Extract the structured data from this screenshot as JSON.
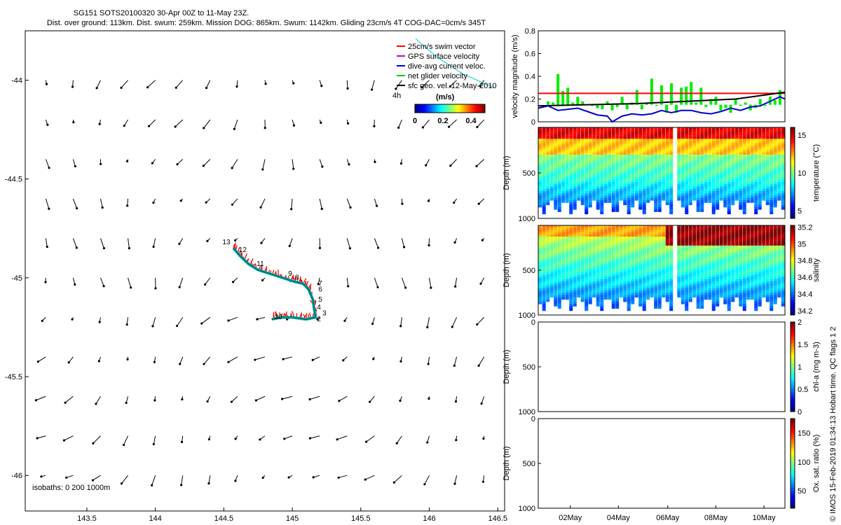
{
  "header": {
    "line1": "SG151 SOTS20100320 30-Apr 00Z to 11-May 23Z.",
    "line2": "Dist. over ground: 113km. Dist. swum: 259km. Mission DOG: 865km. Swum: 1142km. Gliding 23cm/s 4T COG-DAC=0cm/s 345T"
  },
  "footer": {
    "credit": "© IMOS 15-Feb-2019 01:34:13 Hobart time. QC flags 1 2"
  },
  "colors": {
    "swim": "#ff0000",
    "gps": "#cc00cc",
    "dac": "#0000cc",
    "net": "#00cc00",
    "cyan_track": "#00cccc",
    "black": "#000000"
  },
  "chart_data": [
    {
      "type": "scatter",
      "name": "map",
      "xlim": [
        143.05,
        146.55
      ],
      "ylim": [
        -46.18,
        -43.75
      ],
      "xticks": [
        143.5,
        144,
        144.5,
        145,
        145.5,
        146,
        146.5
      ],
      "yticks": [
        -44,
        -44.5,
        -45,
        -45.5,
        -46
      ],
      "xticklabels": [
        "143.5",
        "144",
        "144.5",
        "145",
        "145.5",
        "146",
        "146.5"
      ],
      "yticklabels": [
        "-44",
        "-44.5",
        "-45",
        "-45.5",
        "-46"
      ],
      "legend": {
        "items": [
          {
            "label": "25cm/s swim vector",
            "color": "#ff0000"
          },
          {
            "label": "GPS surface velocity",
            "color": "#cc00cc"
          },
          {
            "label": "dive-avg current veloc.",
            "color": "#0000cc"
          },
          {
            "label": "net glider velocity",
            "color": "#00cc00"
          },
          {
            "label": "sfc geo. vel. 12-May-2010",
            "color": "#000000"
          }
        ],
        "placement": "top-right",
        "extra_label": "4h",
        "colorbar_title": "(m/s)",
        "colorbar_ticks": [
          "0",
          "0.2",
          "0.4"
        ],
        "colorbar_range": [
          0,
          0.5
        ]
      },
      "isobaths_label": "isobaths: 0   200   1000m",
      "day_labels": [
        {
          "text": "13",
          "lon": 144.49,
          "lat": -44.83
        },
        {
          "text": "12",
          "lon": 144.61,
          "lat": -44.87
        },
        {
          "text": "11",
          "lon": 144.74,
          "lat": -44.94
        },
        {
          "text": "9",
          "lon": 144.97,
          "lat": -44.99
        },
        {
          "text": "8",
          "lon": 145.02,
          "lat": -45.01
        },
        {
          "text": "7",
          "lon": 145.19,
          "lat": -45.04
        },
        {
          "text": "6",
          "lon": 145.19,
          "lat": -45.07
        },
        {
          "text": "5",
          "lon": 145.19,
          "lat": -45.12
        },
        {
          "text": "4",
          "lon": 145.18,
          "lat": -45.16
        },
        {
          "text": "3",
          "lon": 145.22,
          "lat": -45.19
        },
        {
          "text": "2",
          "lon": 145.18,
          "lat": -45.22
        },
        {
          "text": "30",
          "lon": 144.87,
          "lat": -45.21
        }
      ],
      "track": [
        [
          144.57,
          -44.85
        ],
        [
          144.62,
          -44.89
        ],
        [
          144.68,
          -44.93
        ],
        [
          144.75,
          -44.96
        ],
        [
          144.84,
          -44.98
        ],
        [
          144.93,
          -45.0
        ],
        [
          145.02,
          -45.02
        ],
        [
          145.08,
          -45.03
        ],
        [
          145.12,
          -45.06
        ],
        [
          145.15,
          -45.11
        ],
        [
          145.16,
          -45.16
        ],
        [
          145.17,
          -45.2
        ],
        [
          145.1,
          -45.21
        ],
        [
          145.0,
          -45.2
        ],
        [
          144.92,
          -45.2
        ],
        [
          144.85,
          -45.21
        ]
      ],
      "cyan_track": [
        [
          145.9,
          -43.79
        ],
        [
          146.05,
          -43.88
        ],
        [
          146.25,
          -43.97
        ],
        [
          146.48,
          -44.04
        ]
      ]
    },
    {
      "type": "line",
      "name": "velocity",
      "ylabel": "velocity magnitude (m/s)",
      "xlim": [
        0,
        100
      ],
      "ylim": [
        0,
        0.8
      ],
      "yticks": [
        0,
        0.2,
        0.4,
        0.6,
        0.8
      ],
      "yticklabels": [
        "0",
        "0.2",
        "0.4",
        "0.6",
        "0.8"
      ],
      "series": [
        {
          "color": "#ff0000",
          "x": [
            0,
            100
          ],
          "y": [
            0.25,
            0.25
          ]
        },
        {
          "color": "#000000",
          "x": [
            0,
            20,
            40,
            60,
            80,
            100
          ],
          "y": [
            0.14,
            0.15,
            0.16,
            0.18,
            0.2,
            0.26
          ]
        },
        {
          "color": "#0000cc",
          "x": [
            0,
            4,
            8,
            12,
            16,
            20,
            24,
            28,
            30,
            34,
            38,
            42,
            46,
            50,
            54,
            58,
            62,
            66,
            70,
            74,
            78,
            82,
            86,
            90,
            94,
            98,
            100
          ],
          "y": [
            0.12,
            0.14,
            0.1,
            0.11,
            0.12,
            0.09,
            0.06,
            0.05,
            0.0,
            0.05,
            0.07,
            0.06,
            0.07,
            0.1,
            0.08,
            0.1,
            0.1,
            0.08,
            0.07,
            0.09,
            0.12,
            0.1,
            0.13,
            0.14,
            0.18,
            0.22,
            0.2
          ]
        }
      ],
      "bars_color": "#00ee00",
      "bars_x": [
        2,
        4,
        6,
        8,
        10,
        12,
        14,
        16,
        18,
        20,
        22,
        24,
        26,
        28,
        30,
        32,
        34,
        36,
        38,
        40,
        42,
        44,
        46,
        48,
        50,
        52,
        54,
        56,
        58,
        60,
        62,
        64,
        66,
        68,
        70,
        72,
        74,
        76,
        78,
        80,
        82,
        84,
        86,
        88,
        90,
        92,
        94,
        96,
        98
      ],
      "bars_y": [
        0.15,
        0.18,
        0.17,
        0.42,
        0.27,
        0.3,
        0.17,
        0.22,
        0.18,
        0.15,
        0.14,
        0.12,
        0.11,
        0.18,
        0.1,
        0.13,
        0.22,
        0.11,
        0.17,
        0.28,
        0.11,
        0.16,
        0.38,
        0.14,
        0.32,
        0.08,
        0.34,
        0.08,
        0.3,
        0.31,
        0.35,
        0.17,
        0.3,
        0.13,
        0.2,
        0.22,
        0.1,
        0.12,
        0.08,
        0.2,
        0.14,
        0.17,
        0.1,
        0.12,
        0.2,
        0.14,
        0.22,
        0.19,
        0.28
      ]
    },
    {
      "type": "heatmap",
      "name": "temperature",
      "ylabel": "Depth (m)",
      "colorbar_label": "temperature (°C)",
      "clim": [
        4,
        16
      ],
      "colorbar_ticks": [
        5,
        10,
        15
      ],
      "yticklabels": [
        "500",
        "1000"
      ],
      "depth_max": 1000
    },
    {
      "type": "heatmap",
      "name": "salinity",
      "ylabel": "Depth (m)",
      "colorbar_label": "salinity",
      "clim": [
        34.15,
        35.22
      ],
      "colorbar_ticks": [
        34.2,
        34.4,
        34.6,
        34.8,
        35,
        35.2
      ],
      "colorbar_ticklabels": [
        "34.2",
        "34.4",
        "34.6",
        "34.8",
        "35",
        "35.2"
      ],
      "yticklabels": [
        "500",
        "1000"
      ],
      "depth_max": 1000
    },
    {
      "type": "heatmap",
      "name": "chlorophyll",
      "ylabel": "Depth (m)",
      "colorbar_label": "chl-a (mg m-3)",
      "clim": [
        0,
        2
      ],
      "colorbar_ticks": [
        0,
        0.5,
        1,
        1.5,
        2
      ],
      "colorbar_ticklabels": [
        "0",
        "0.5",
        "1",
        "1.5",
        "2"
      ],
      "yticklabels": [
        "0",
        "500",
        "1000"
      ],
      "depth_max": 1000
    },
    {
      "type": "heatmap",
      "name": "oxygen",
      "ylabel": "Depth (m)",
      "colorbar_label": "Ox. sat. ratio (%)",
      "clim": [
        20,
        175
      ],
      "colorbar_ticks": [
        50,
        100,
        150
      ],
      "colorbar_ticklabels": [
        "50",
        "100",
        "150"
      ],
      "yticklabels": [
        "0",
        "500",
        "1000"
      ],
      "depth_max": 1000,
      "xticklabels": [
        "02May",
        "04May",
        "06May",
        "08May",
        "10May"
      ]
    }
  ]
}
